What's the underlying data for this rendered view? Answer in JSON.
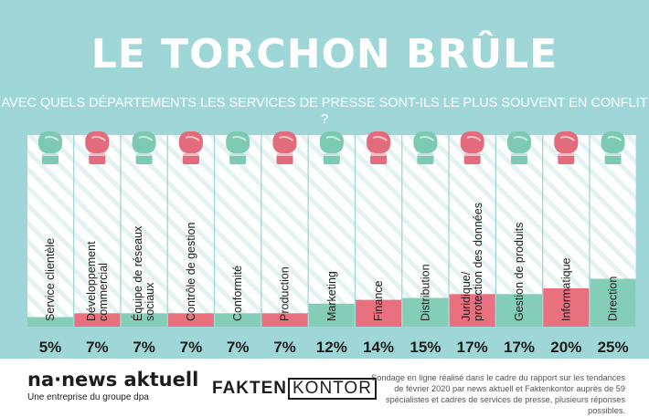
{
  "title": "LE TORCHON BRÛLE",
  "subtitle": "AVEC QUELS DÉPARTEMENTS LES SERVICES DE PRESSE SONT-ILS LE PLUS SOUVENT EN CONFLIT ?",
  "chart_data": {
    "type": "bar",
    "categories": [
      "Service clientèle",
      "Développement commercial",
      "Équipe de réseaux sociaux",
      "Contrôle de gestion",
      "Conformité",
      "Production",
      "Marketing",
      "Finance",
      "Distribution",
      "Juridique/ protection des données",
      "Gestion de produits",
      "Informatique",
      "Direction"
    ],
    "category_lines": [
      [
        "Service clientèle"
      ],
      [
        "Développement",
        "commercial"
      ],
      [
        "Équipe de réseaux",
        "sociaux"
      ],
      [
        "Contrôle de gestion"
      ],
      [
        "Conformité"
      ],
      [
        "Production"
      ],
      [
        "Marketing"
      ],
      [
        "Finance"
      ],
      [
        "Distribution"
      ],
      [
        "Juridique/",
        "protection des données"
      ],
      [
        "Gestion de produits"
      ],
      [
        "Informatique"
      ],
      [
        "Direction"
      ]
    ],
    "values": [
      5,
      7,
      7,
      7,
      7,
      7,
      12,
      14,
      15,
      17,
      17,
      20,
      25
    ],
    "value_labels": [
      "5%",
      "7%",
      "7%",
      "7%",
      "7%",
      "7%",
      "12%",
      "14%",
      "15%",
      "17%",
      "17%",
      "20%",
      "25%"
    ],
    "unit": "%",
    "ylim": [
      0,
      100
    ],
    "bar_colors": [
      "#84cdb6",
      "#e8707f",
      "#84cdb6",
      "#e8707f",
      "#84cdb6",
      "#e8707f",
      "#84cdb6",
      "#e8707f",
      "#84cdb6",
      "#e8707f",
      "#84cdb6",
      "#e8707f",
      "#84cdb6"
    ],
    "colors": {
      "green": "#84cdb6",
      "pink": "#e8707f",
      "background": "#9fd7d8",
      "glove_green": "#7dcab3",
      "glove_pink": "#e26b7c"
    }
  },
  "footer": {
    "brand_left": "na·news aktuell",
    "brand_left_sub": "Une entreprise du groupe dpa",
    "brand_center_a": "FAKTEN",
    "brand_center_b": "KONTOR",
    "note": "Sondage en ligne réalisé dans le cadre du rapport sur les tendances de février 2020 par news aktuell et Faktenkontor auprès de 59 spécialistes et cadres de services de presse, plusieurs réponses possibles."
  }
}
